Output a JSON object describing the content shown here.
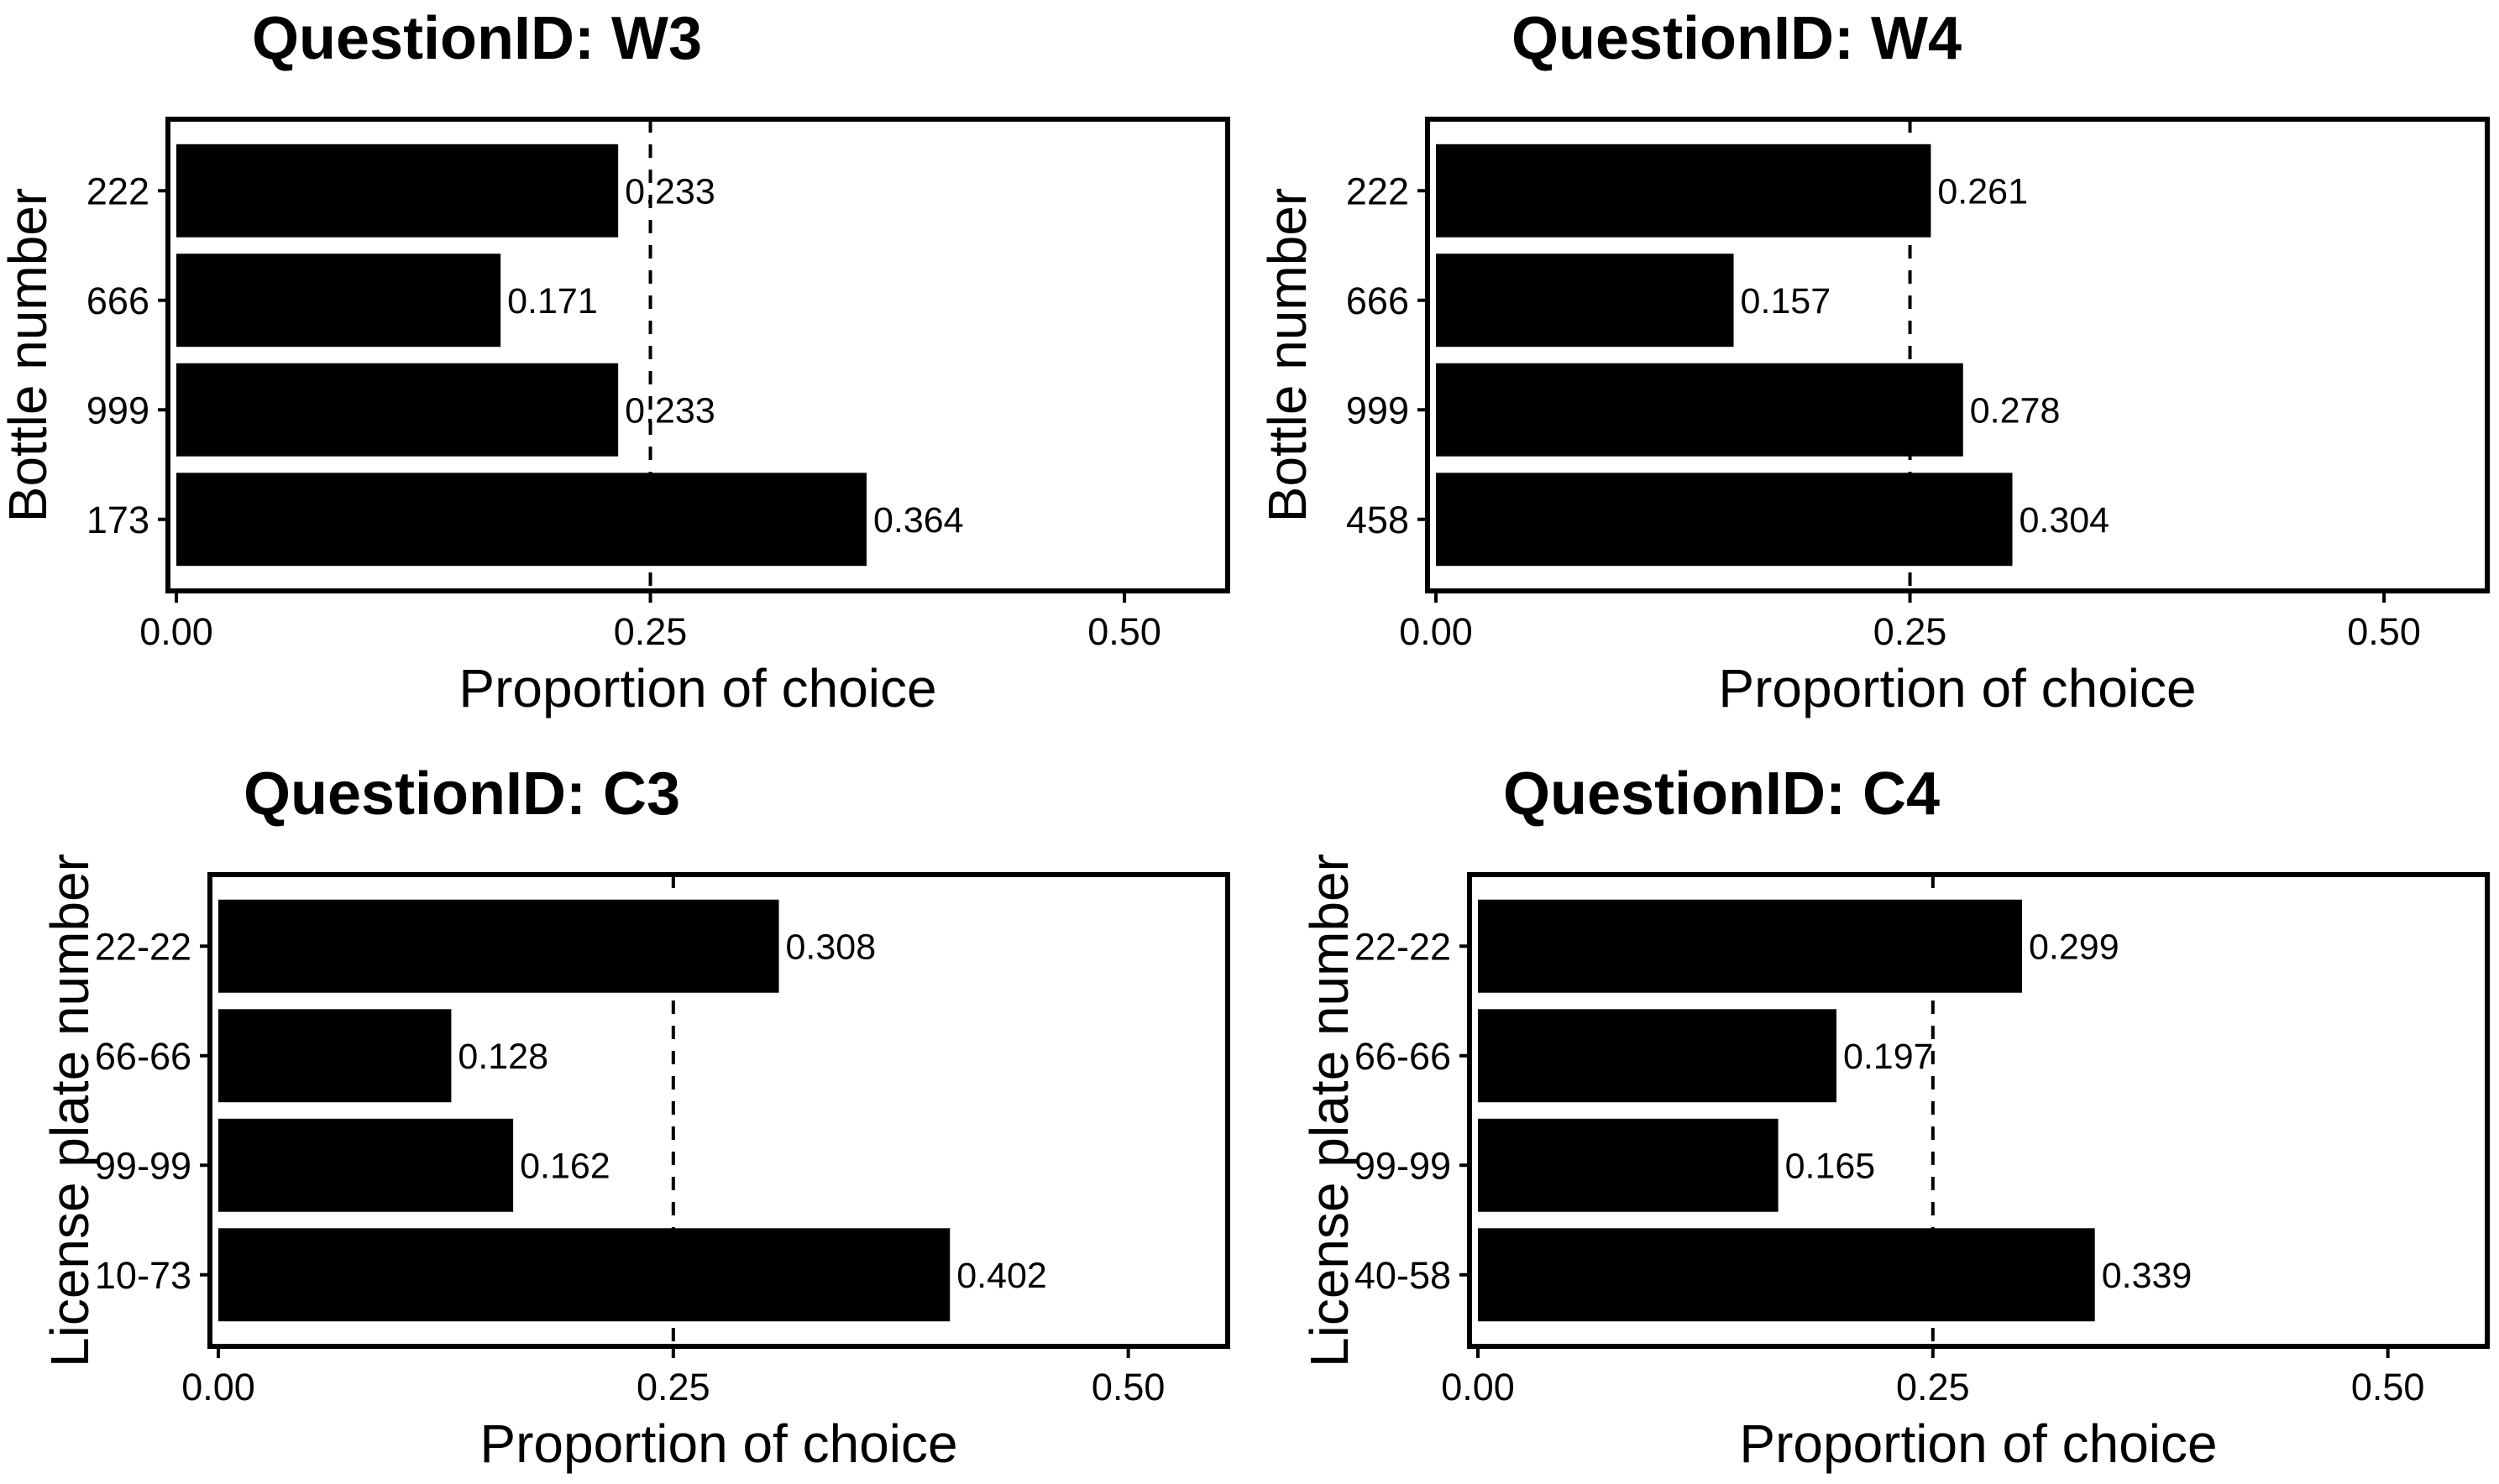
{
  "chart_data": [
    {
      "type": "bar",
      "orientation": "horizontal",
      "title": "QuestionID: W3",
      "xlabel": "Proportion of choice",
      "ylabel": "Bottle number",
      "categories": [
        "222",
        "666",
        "999",
        "173"
      ],
      "values": [
        0.233,
        0.171,
        0.233,
        0.364
      ],
      "value_labels": [
        "0.233",
        "0.171",
        "0.233",
        "0.364"
      ],
      "xlim": [
        0,
        0.55
      ],
      "xticks": [
        0,
        0.25,
        0.5
      ],
      "xtick_labels": [
        "0.00",
        "0.25",
        "0.50"
      ],
      "reference_line": 0.25
    },
    {
      "type": "bar",
      "orientation": "horizontal",
      "title": "QuestionID: W4",
      "xlabel": "Proportion of choice",
      "ylabel": "Bottle number",
      "categories": [
        "222",
        "666",
        "999",
        "458"
      ],
      "values": [
        0.261,
        0.157,
        0.278,
        0.304
      ],
      "value_labels": [
        "0.261",
        "0.157",
        "0.278",
        "0.304"
      ],
      "xlim": [
        0,
        0.55
      ],
      "xticks": [
        0,
        0.25,
        0.5
      ],
      "xtick_labels": [
        "0.00",
        "0.25",
        "0.50"
      ],
      "reference_line": 0.25
    },
    {
      "type": "bar",
      "orientation": "horizontal",
      "title": "QuestionID: C3",
      "xlabel": "Proportion of choice",
      "ylabel": "License plate number",
      "categories": [
        "22-22",
        "66-66",
        "99-99",
        "10-73"
      ],
      "values": [
        0.308,
        0.128,
        0.162,
        0.402
      ],
      "value_labels": [
        "0.308",
        "0.128",
        "0.162",
        "0.402"
      ],
      "xlim": [
        0,
        0.55
      ],
      "xticks": [
        0,
        0.25,
        0.5
      ],
      "xtick_labels": [
        "0.00",
        "0.25",
        "0.50"
      ],
      "reference_line": 0.25
    },
    {
      "type": "bar",
      "orientation": "horizontal",
      "title": "QuestionID: C4",
      "xlabel": "Proportion of choice",
      "ylabel": "License plate number",
      "categories": [
        "22-22",
        "66-66",
        "99-99",
        "40-58"
      ],
      "values": [
        0.299,
        0.197,
        0.165,
        0.339
      ],
      "value_labels": [
        "0.299",
        "0.197",
        "0.165",
        "0.339"
      ],
      "xlim": [
        0,
        0.55
      ],
      "xticks": [
        0,
        0.25,
        0.5
      ],
      "xtick_labels": [
        "0.00",
        "0.25",
        "0.50"
      ],
      "reference_line": 0.25
    }
  ]
}
